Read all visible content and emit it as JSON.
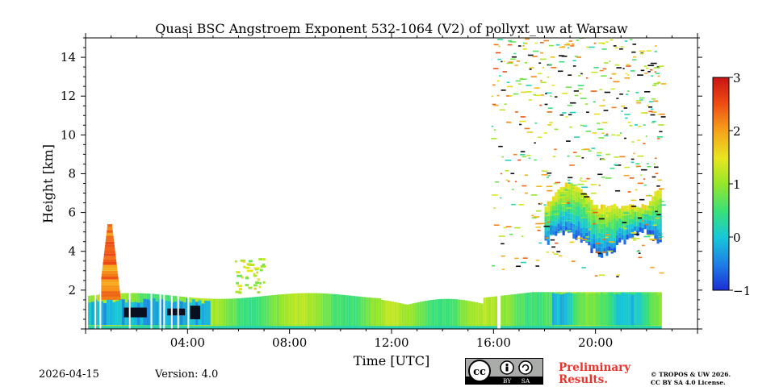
{
  "chart_data": {
    "type": "heatmap",
    "title": "Quasi BSC Angstroem Exponent 532-1064 (V2) of pollyxt_uw at Warsaw",
    "xlabel": "Time [UTC]",
    "ylabel": "Height [km]",
    "xlim_hours": [
      0,
      24
    ],
    "ylim_km": [
      0,
      15
    ],
    "x_ticks": [
      {
        "label": "04:00",
        "value": 4
      },
      {
        "label": "08:00",
        "value": 8
      },
      {
        "label": "12:00",
        "value": 12
      },
      {
        "label": "16:00",
        "value": 16
      },
      {
        "label": "20:00",
        "value": 20
      }
    ],
    "y_ticks": [
      {
        "label": "2",
        "value": 2
      },
      {
        "label": "4",
        "value": 4
      },
      {
        "label": "6",
        "value": 6
      },
      {
        "label": "8",
        "value": 8
      },
      {
        "label": "10",
        "value": 10
      },
      {
        "label": "12",
        "value": 12
      },
      {
        "label": "14",
        "value": 14
      }
    ],
    "colorbar": {
      "min": -1,
      "max": 3,
      "ticks": [
        {
          "label": "−1",
          "value": -1
        },
        {
          "label": "0",
          "value": 0
        },
        {
          "label": "1",
          "value": 1
        },
        {
          "label": "2",
          "value": 2
        },
        {
          "label": "3",
          "value": 3
        }
      ],
      "colormap": [
        "#1b2ed6",
        "#1f7de6",
        "#18c8d8",
        "#38e07a",
        "#96e62a",
        "#e8e620",
        "#f6a21a",
        "#ee4a14",
        "#c81414"
      ]
    },
    "regions": [
      {
        "name": "boundary-layer",
        "t0": 0.1,
        "t1": 22.6,
        "h0": 0.1,
        "h1": 1.9,
        "value": 0.85
      },
      {
        "name": "surface-layer",
        "t0": 0.1,
        "t1": 22.6,
        "h0": 0.0,
        "h1": 0.15,
        "value": 0.2
      },
      {
        "name": "night-low-values",
        "t0": 0.1,
        "t1": 4.9,
        "h0": 0.2,
        "h1": 1.6,
        "value": -0.2
      },
      {
        "name": "night-aerosol-plume",
        "t0": 0.6,
        "t1": 1.3,
        "h0": 1.5,
        "h1": 5.4,
        "value": 2.1
      },
      {
        "name": "evening-residual-layer",
        "t0": 18.3,
        "t1": 22.6,
        "h0": 0.2,
        "h1": 1.9,
        "value": 0.4
      },
      {
        "name": "cloud-layer",
        "t0": 18.0,
        "t1": 22.6,
        "h0": 4.0,
        "h1": 7.8,
        "value": 0.6
      },
      {
        "name": "cirrus-scattered",
        "t0": 15.9,
        "t1": 22.6,
        "h0": 2.5,
        "h1": 15.0,
        "value": 1.3
      },
      {
        "name": "morning-lofted-layer",
        "t0": 5.8,
        "t1": 7.0,
        "h0": 1.8,
        "h1": 3.6,
        "value": 1.0
      }
    ]
  },
  "footer": {
    "date": "2026-04-15",
    "version": "Version: 4.0",
    "license_badge": {
      "cc": "cc",
      "by": "BY",
      "sa": "SA"
    },
    "preliminary_line1": "Preliminary",
    "preliminary_line2": "Results.",
    "copyright_line1": "© TROPOS & UW 2026.",
    "copyright_line2": "CC BY SA 4.0 License."
  },
  "colors": {
    "preliminary": "#e8342c",
    "badge": "#a9aca8"
  }
}
